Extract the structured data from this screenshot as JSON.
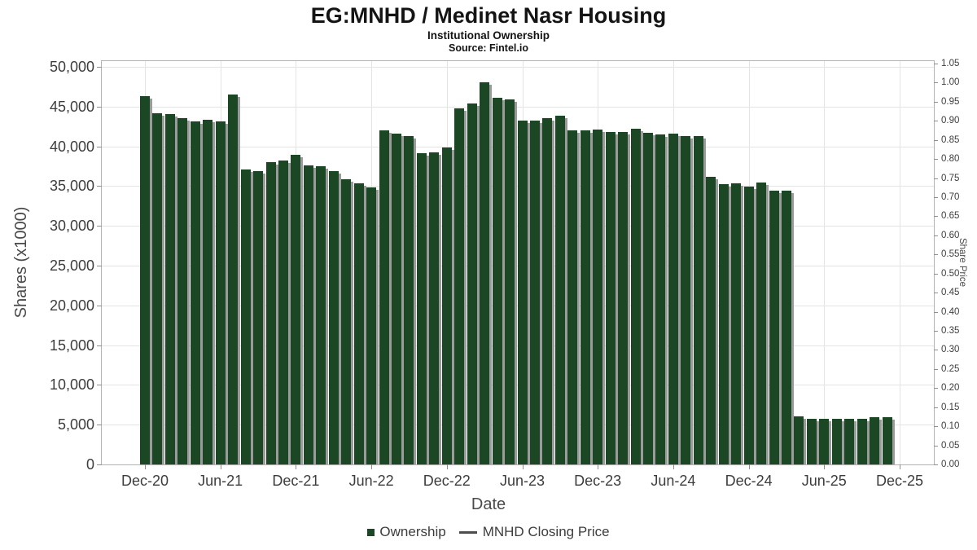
{
  "header": {
    "title": "EG:MNHD / Medinet Nasr Housing",
    "subtitle": "Institutional Ownership",
    "source": "Source: Fintel.io"
  },
  "axes": {
    "x_title": "Date",
    "y_left_title": "Shares (x1000)",
    "y_right_title": "Share Price"
  },
  "legend": {
    "items": [
      {
        "label": "Ownership",
        "marker": "square"
      },
      {
        "label": "MNHD Closing Price",
        "marker": "line"
      }
    ]
  },
  "chart_data": {
    "type": "bar",
    "title": "EG:MNHD / Medinet Nasr Housing",
    "subtitle": "Institutional Ownership",
    "source": "Source: Fintel.io",
    "xlabel": "Date",
    "ylabel_left": "Shares (x1000)",
    "ylabel_right": "Share Price",
    "grid": true,
    "legend_position": "bottom",
    "ylim_left": [
      0,
      50700
    ],
    "ylim_right": [
      0,
      1.05
    ],
    "yticks_left_values": [
      0,
      5000,
      10000,
      15000,
      20000,
      25000,
      30000,
      35000,
      40000,
      45000,
      50000
    ],
    "yticks_left_labels": [
      "0",
      "5,000",
      "10,000",
      "15,000",
      "20,000",
      "25,000",
      "30,000",
      "35,000",
      "40,000",
      "45,000",
      "50,000"
    ],
    "yticks_right_labels": [
      "0.00",
      "0.05",
      "0.10",
      "0.15",
      "0.20",
      "0.25",
      "0.30",
      "0.35",
      "0.40",
      "0.45",
      "0.50",
      "0.55",
      "0.60",
      "0.65",
      "0.70",
      "0.75",
      "0.80",
      "0.85",
      "0.90",
      "0.95",
      "1.00",
      "1.05"
    ],
    "xtick_labels": [
      "Dec-20",
      "Jun-21",
      "Dec-21",
      "Jun-22",
      "Dec-22",
      "Jun-23",
      "Dec-23",
      "Jun-24",
      "Dec-24",
      "Jun-25",
      "Dec-25"
    ],
    "categories": [
      "Dec-20",
      "Jan-21",
      "Feb-21",
      "Mar-21",
      "Apr-21",
      "May-21",
      "Jun-21",
      "Jul-21",
      "Aug-21",
      "Sep-21",
      "Oct-21",
      "Nov-21",
      "Dec-21",
      "Jan-22",
      "Feb-22",
      "Mar-22",
      "Apr-22",
      "May-22",
      "Jun-22",
      "Jul-22",
      "Aug-22",
      "Sep-22",
      "Oct-22",
      "Nov-22",
      "Dec-22",
      "Jan-23",
      "Feb-23",
      "Mar-23",
      "Apr-23",
      "May-23",
      "Jun-23",
      "Jul-23",
      "Aug-23",
      "Sep-23",
      "Oct-23",
      "Nov-23",
      "Dec-23",
      "Jan-24",
      "Feb-24",
      "Mar-24",
      "Apr-24",
      "May-24",
      "Jun-24",
      "Jul-24",
      "Aug-24",
      "Sep-24",
      "Oct-24",
      "Nov-24",
      "Dec-24",
      "Jan-25",
      "Feb-25",
      "Mar-25",
      "Apr-25",
      "May-25",
      "Jun-25",
      "Jul-25",
      "Aug-25",
      "Sep-25",
      "Oct-25",
      "Nov-25"
    ],
    "series": [
      {
        "name": "Ownership",
        "type": "bar",
        "unit": "thousand shares",
        "values": [
          46300,
          44200,
          44100,
          43500,
          43100,
          43300,
          43100,
          46500,
          37100,
          36900,
          38000,
          38200,
          38900,
          37600,
          37500,
          36900,
          35900,
          35300,
          34800,
          42000,
          41600,
          41300,
          39100,
          39200,
          39900,
          44800,
          45400,
          48100,
          46100,
          45900,
          43200,
          43200,
          43500,
          43900,
          42000,
          42000,
          42100,
          41800,
          41800,
          42200,
          41700,
          41500,
          41600,
          41300,
          41300,
          36200,
          35200,
          35300,
          34900,
          35400,
          34400,
          34400,
          6000,
          5700,
          5700,
          5700,
          5700,
          5700,
          5900,
          5900
        ]
      },
      {
        "name": "MNHD Closing Price",
        "type": "line",
        "values": []
      }
    ],
    "colors": {
      "bar": "#1c4724",
      "bar_shadow": "#9b9b9b",
      "grid": "#e4e4e4",
      "axis_border": "#b3b3b3",
      "tick": "#8f8f8f",
      "tick_label": "#3d3d3d",
      "axis_title": "#4a4a4a",
      "title": "#141414",
      "legend_text": "#3d3d3d",
      "legend_line": "#4d4d4d"
    }
  }
}
